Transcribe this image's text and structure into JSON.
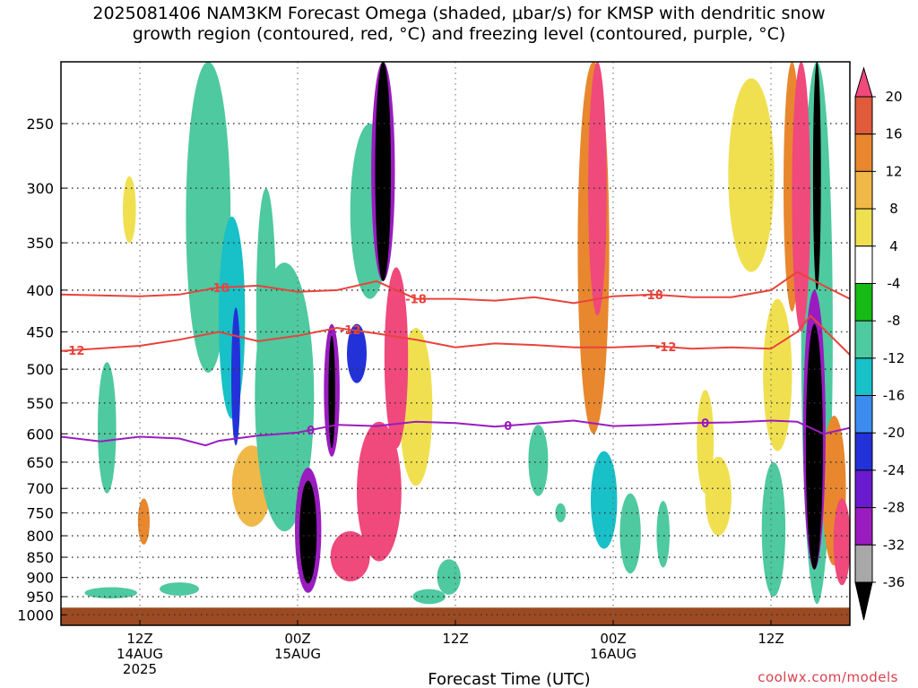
{
  "title_line1": "2025081406 NAM3KM Forecast Omega (shaded, μbar/s) for KMSP with dendritic snow",
  "title_line2": "growth region (contoured, red, °C) and freezing level (contoured, purple, °C)",
  "credit": "coolwx.com/models",
  "chart_data": {
    "type": "heatmap",
    "title": "2025081406 NAM3KM Forecast Omega (shaded, μbar/s) for KMSP with dendritic snow growth region (contoured, red, °C) and freezing level (contoured, purple, °C)",
    "xlabel": "Forecast Time (UTC)",
    "ylabel": "",
    "y_scale": "log-pressure",
    "y_ticks": [
      250,
      300,
      350,
      400,
      450,
      500,
      550,
      600,
      650,
      700,
      750,
      800,
      850,
      900,
      950,
      1000
    ],
    "x_ticks": [
      {
        "label": "12Z",
        "sub1": "14AUG",
        "sub2": "2025",
        "hour": 12
      },
      {
        "label": "00Z",
        "sub1": "15AUG",
        "sub2": "",
        "hour": 24
      },
      {
        "label": "12Z",
        "sub1": "",
        "sub2": "",
        "hour": 36
      },
      {
        "label": "00Z",
        "sub1": "16AUG",
        "sub2": "",
        "hour": 48
      },
      {
        "label": "12Z",
        "sub1": "",
        "sub2": "",
        "hour": 60
      }
    ],
    "xlim_hours": [
      6,
      66
    ],
    "ylim_hPa": [
      210,
      1030
    ],
    "colorbar": {
      "labels": [
        "20",
        "16",
        "12",
        "8",
        "4",
        "-4",
        "-8",
        "-12",
        "-16",
        "-20",
        "-24",
        "-28",
        "-32",
        "-36"
      ],
      "colors": [
        "#f0497c",
        "#e05a3c",
        "#e8872e",
        "#f0b848",
        "#f0e050",
        "#ffffff",
        "#16bb16",
        "#4ec9a0",
        "#18c0c8",
        "#3c8cf0",
        "#2232d8",
        "#6a1bd0",
        "#9a1cc0",
        "#a8a8a8",
        "#000000"
      ]
    },
    "contours": [
      {
        "name": "-18",
        "color": "#e8433c",
        "hours": [
          6,
          12,
          15,
          18,
          21,
          24,
          27,
          30,
          33,
          36,
          39,
          42,
          45,
          48,
          51,
          54,
          57,
          60,
          62,
          64,
          66
        ],
        "hPa": [
          405,
          407,
          405,
          397,
          395,
          402,
          400,
          390,
          410,
          410,
          412,
          408,
          415,
          407,
          405,
          408,
          408,
          400,
          380,
          395,
          410
        ],
        "labels": [
          {
            "hour": 18,
            "text": "-18"
          },
          {
            "hour": 33,
            "text": "-18"
          },
          {
            "hour": 51,
            "text": "-18"
          }
        ]
      },
      {
        "name": "-12",
        "color": "#e8433c",
        "hours": [
          6,
          12,
          15,
          18,
          21,
          24,
          27,
          30,
          33,
          36,
          39,
          42,
          45,
          48,
          51,
          54,
          57,
          60,
          62,
          63,
          66
        ],
        "hPa": [
          475,
          468,
          460,
          450,
          462,
          455,
          445,
          452,
          460,
          470,
          465,
          467,
          470,
          470,
          468,
          472,
          470,
          472,
          450,
          430,
          480
        ],
        "labels": [
          {
            "hour": 7,
            "text": "-12"
          },
          {
            "hour": 28,
            "text": "-12"
          },
          {
            "hour": 52,
            "text": "-12"
          }
        ]
      },
      {
        "name": "0",
        "color": "#9a1cc0",
        "hours": [
          6,
          9,
          12,
          15,
          17,
          18,
          21,
          24,
          27,
          30,
          33,
          36,
          39,
          42,
          45,
          48,
          51,
          54,
          57,
          60,
          62,
          64,
          66
        ],
        "hPa": [
          605,
          613,
          605,
          608,
          620,
          612,
          603,
          598,
          585,
          587,
          580,
          582,
          588,
          583,
          578,
          587,
          585,
          582,
          581,
          578,
          580,
          600,
          590
        ],
        "labels": [
          {
            "hour": 25,
            "text": "0"
          },
          {
            "hour": 40,
            "text": "0"
          },
          {
            "hour": 55,
            "text": "0"
          }
        ]
      }
    ],
    "ground_hPa": 975,
    "shading_blobs": [
      {
        "hour": 9.5,
        "hPa": 600,
        "w": 1.4,
        "h": 220,
        "value": -8
      },
      {
        "hour": 9.8,
        "hPa": 940,
        "w": 4.0,
        "h": 30,
        "value": -8
      },
      {
        "hour": 15,
        "hPa": 930,
        "w": 3.0,
        "h": 35,
        "value": -8
      },
      {
        "hour": 12.3,
        "hPa": 770,
        "w": 0.9,
        "h": 100,
        "value": 12
      },
      {
        "hour": 11.2,
        "hPa": 320,
        "w": 1.0,
        "h": 60,
        "value": 4
      },
      {
        "hour": 17.2,
        "hPa": 330,
        "w": 3.4,
        "h": 350,
        "value": -8
      },
      {
        "hour": 19,
        "hPa": 450,
        "w": 2.0,
        "h": 250,
        "value": -12
      },
      {
        "hour": 19.3,
        "hPa": 520,
        "w": 0.7,
        "h": 200,
        "value": -20
      },
      {
        "hour": 20.5,
        "hPa": 700,
        "w": 3.0,
        "h": 160,
        "value": 8
      },
      {
        "hour": 21.6,
        "hPa": 440,
        "w": 1.5,
        "h": 280,
        "value": -8
      },
      {
        "hour": 23.0,
        "hPa": 580,
        "w": 4.5,
        "h": 420,
        "value": -8
      },
      {
        "hour": 24.8,
        "hPa": 800,
        "w": 2.0,
        "h": 280,
        "value": -28
      },
      {
        "hour": 24.8,
        "hPa": 800,
        "w": 1.3,
        "h": 230,
        "value": -36
      },
      {
        "hour": 26.6,
        "hPa": 540,
        "w": 1.2,
        "h": 200,
        "value": -28
      },
      {
        "hour": 26.6,
        "hPa": 540,
        "w": 0.5,
        "h": 170,
        "value": -36
      },
      {
        "hour": 28.5,
        "hPa": 480,
        "w": 1.5,
        "h": 80,
        "value": -20
      },
      {
        "hour": 29.5,
        "hPa": 330,
        "w": 3.0,
        "h": 160,
        "value": -8
      },
      {
        "hour": 30.5,
        "hPa": 280,
        "w": 1.8,
        "h": 220,
        "value": -28
      },
      {
        "hour": 30.5,
        "hPa": 290,
        "w": 1.2,
        "h": 200,
        "value": -36
      },
      {
        "hour": 30.2,
        "hPa": 720,
        "w": 3.4,
        "h": 280,
        "value": 20
      },
      {
        "hour": 31.5,
        "hPa": 500,
        "w": 1.8,
        "h": 250,
        "value": 20
      },
      {
        "hour": 28.0,
        "hPa": 850,
        "w": 3.0,
        "h": 120,
        "value": 20
      },
      {
        "hour": 33.0,
        "hPa": 570,
        "w": 2.5,
        "h": 250,
        "value": 4
      },
      {
        "hour": 34.0,
        "hPa": 950,
        "w": 2.5,
        "h": 40,
        "value": -8
      },
      {
        "hour": 35.5,
        "hPa": 900,
        "w": 1.8,
        "h": 90,
        "value": -8
      },
      {
        "hour": 42.3,
        "hPa": 650,
        "w": 1.5,
        "h": 130,
        "value": -8
      },
      {
        "hour": 44.0,
        "hPa": 750,
        "w": 0.8,
        "h": 40,
        "value": -8
      },
      {
        "hour": 46.5,
        "hPa": 350,
        "w": 2.4,
        "h": 500,
        "value": 12
      },
      {
        "hour": 46.8,
        "hPa": 280,
        "w": 1.4,
        "h": 300,
        "value": 20
      },
      {
        "hour": 47.3,
        "hPa": 730,
        "w": 2.0,
        "h": 200,
        "value": -12
      },
      {
        "hour": 49.3,
        "hPa": 800,
        "w": 1.6,
        "h": 180,
        "value": -8
      },
      {
        "hour": 51.8,
        "hPa": 800,
        "w": 1.0,
        "h": 150,
        "value": -8
      },
      {
        "hour": 55.0,
        "hPa": 620,
        "w": 1.3,
        "h": 180,
        "value": 4
      },
      {
        "hour": 56.0,
        "hPa": 720,
        "w": 2.0,
        "h": 160,
        "value": 4
      },
      {
        "hour": 58.5,
        "hPa": 300,
        "w": 3.5,
        "h": 160,
        "value": 4
      },
      {
        "hour": 60.5,
        "hPa": 520,
        "w": 2.2,
        "h": 220,
        "value": 4
      },
      {
        "hour": 60.2,
        "hPa": 800,
        "w": 1.8,
        "h": 300,
        "value": -8
      },
      {
        "hour": 61.6,
        "hPa": 300,
        "w": 1.3,
        "h": 250,
        "value": 12
      },
      {
        "hour": 62.3,
        "hPa": 300,
        "w": 1.4,
        "h": 300,
        "value": 20
      },
      {
        "hour": 63.5,
        "hPa": 520,
        "w": 2.4,
        "h": 900,
        "value": -8
      },
      {
        "hour": 63.3,
        "hPa": 640,
        "w": 1.7,
        "h": 480,
        "value": -28
      },
      {
        "hour": 63.3,
        "hPa": 660,
        "w": 1.3,
        "h": 440,
        "value": -36
      },
      {
        "hour": 63.5,
        "hPa": 280,
        "w": 0.6,
        "h": 240,
        "value": -36
      },
      {
        "hour": 64.8,
        "hPa": 720,
        "w": 1.8,
        "h": 300,
        "value": 12
      },
      {
        "hour": 65.4,
        "hPa": 820,
        "w": 1.3,
        "h": 200,
        "value": 20
      }
    ]
  }
}
